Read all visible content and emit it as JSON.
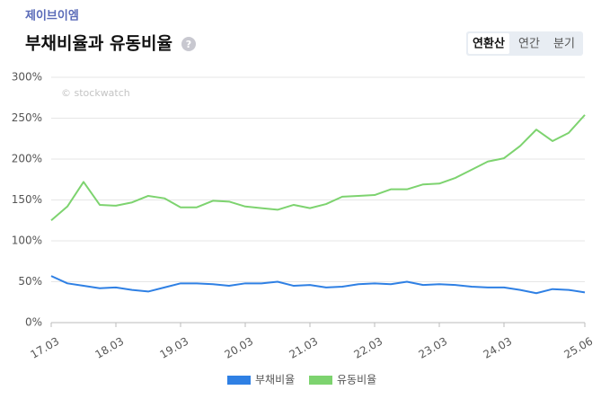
{
  "company": "제이브이엠",
  "help_icon": "?",
  "tabs": [
    "연환산",
    "연간",
    "분기"
  ],
  "watermark": "© stockwatch",
  "chart_data": {
    "type": "line",
    "title": "부채비율과 유동비율",
    "categories": [
      "17.03",
      null,
      null,
      null,
      "18.03",
      null,
      null,
      null,
      "19.03",
      null,
      null,
      null,
      "20.03",
      null,
      null,
      null,
      "21.03",
      null,
      null,
      null,
      "22.03",
      null,
      null,
      null,
      "23.03",
      null,
      null,
      null,
      "24.03",
      null,
      null,
      null,
      null,
      "25.06"
    ],
    "series": [
      {
        "name": "부채비율",
        "color": "#2f80e4",
        "values": [
          57,
          48,
          45,
          42,
          43,
          40,
          38,
          43,
          48,
          48,
          47,
          45,
          48,
          48,
          50,
          45,
          46,
          43,
          44,
          47,
          48,
          47,
          50,
          46,
          47,
          46,
          44,
          43,
          43,
          40,
          36,
          41,
          40,
          37
        ]
      },
      {
        "name": "유동비율",
        "color": "#7dd36f",
        "values": [
          125,
          142,
          172,
          144,
          143,
          147,
          155,
          152,
          141,
          141,
          149,
          148,
          142,
          140,
          138,
          144,
          140,
          145,
          154,
          155,
          156,
          163,
          163,
          169,
          170,
          177,
          187,
          197,
          201,
          216,
          236,
          222,
          232,
          254
        ]
      }
    ],
    "ylim": [
      0,
      300
    ],
    "yticks": [
      {
        "value": 0,
        "label": "0%"
      },
      {
        "value": 50,
        "label": "50%"
      },
      {
        "value": 100,
        "label": "100%"
      },
      {
        "value": 150,
        "label": "150%"
      },
      {
        "value": 200,
        "label": "200%"
      },
      {
        "value": 250,
        "label": "250%"
      },
      {
        "value": 300,
        "label": "300%"
      }
    ],
    "grid": true,
    "legend": "bottom"
  }
}
